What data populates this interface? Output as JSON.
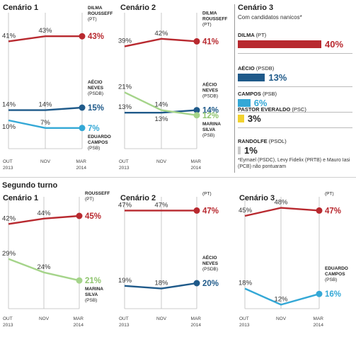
{
  "section_title": "Segundo turno",
  "chart_data": [
    {
      "type": "line",
      "title": "Cenário 1",
      "x": [
        "OUT 2013",
        "NOV",
        "MAR 2014"
      ],
      "series": [
        {
          "name": "DILMA ROUSSEFF (PT)",
          "values": [
            41,
            43,
            43
          ],
          "labels": [
            "41%",
            "43%",
            "43%"
          ],
          "color": "#b8292f"
        },
        {
          "name": "AÉCIO NEVES (PSDB)",
          "values": [
            14,
            14,
            15
          ],
          "labels": [
            "14%",
            "14%",
            "15%"
          ],
          "color": "#1f5a8a"
        },
        {
          "name": "EDUARDO CAMPOS (PSB)",
          "values": [
            10,
            7,
            7
          ],
          "labels": [
            "10%",
            "7%",
            "7%"
          ],
          "color": "#34a8d6"
        }
      ],
      "ylim": [
        0,
        50
      ]
    },
    {
      "type": "line",
      "title": "Cenário 2",
      "x": [
        "OUT 2013",
        "NOV",
        "MAR 2014"
      ],
      "series": [
        {
          "name": "DILMA ROUSSEFF (PT)",
          "values": [
            39,
            42,
            41
          ],
          "labels": [
            "39%",
            "42%",
            "41%"
          ],
          "color": "#b8292f"
        },
        {
          "name": "AÉCIO NEVES (PSDB)",
          "values": [
            13,
            13,
            14
          ],
          "labels": [
            "13%",
            "13%",
            "14%"
          ],
          "color": "#1f5a8a"
        },
        {
          "name": "MARINA SILVA (PSB)",
          "values": [
            21,
            14,
            12
          ],
          "labels": [
            "21%",
            "14%",
            "12%"
          ],
          "color": "#a5d48a"
        }
      ],
      "ylim": [
        0,
        50
      ]
    },
    {
      "type": "bar",
      "title": "Cenário 3",
      "subtitle": "Com candidatos nanicos*",
      "categories": [
        "DILMA",
        "AÉCIO",
        "CAMPOS",
        "PASTOR EVERALDO",
        "RANDOLFE"
      ],
      "parties": [
        "(PT)",
        "(PSDB)",
        "(PSB)",
        "(PSC)",
        "(PSOL)"
      ],
      "values": [
        40,
        13,
        6,
        3,
        1
      ],
      "labels": [
        "40%",
        "13%",
        "6%",
        "3%",
        "1%"
      ],
      "colors": [
        "#b8292f",
        "#1f5a8a",
        "#34a8d6",
        "#f2d22e",
        "#c9c9c9"
      ],
      "note": "*Eymael (PSDC), Levy Fidelix (PRTB) e Mauro Iasi (PCB) não pontuaram"
    },
    {
      "type": "line",
      "title": "Cenário 1",
      "x": [
        "OUT 2013",
        "NOV",
        "MAR 2014"
      ],
      "series": [
        {
          "name": "DILMA ROUSSEFF (PT)",
          "values": [
            42,
            44,
            45
          ],
          "labels": [
            "42%",
            "44%",
            "45%"
          ],
          "color": "#b8292f"
        },
        {
          "name": "MARINA SILVA (PSB)",
          "values": [
            29,
            24,
            21
          ],
          "labels": [
            "29%",
            "24%",
            "21%"
          ],
          "color": "#a5d48a"
        }
      ],
      "ylim": [
        0,
        50
      ]
    },
    {
      "type": "line",
      "title": "Cenário 2",
      "x": [
        "OUT 2013",
        "NOV",
        "MAR 2014"
      ],
      "series": [
        {
          "name": "DILMA ROUSSEFF (PT)",
          "values": [
            47,
            47,
            47
          ],
          "labels": [
            "47%",
            "47%",
            "47%"
          ],
          "color": "#b8292f"
        },
        {
          "name": "AÉCIO NEVES (PSDB)",
          "values": [
            19,
            18,
            20
          ],
          "labels": [
            "19%",
            "18%",
            "20%"
          ],
          "color": "#1f5a8a"
        }
      ],
      "ylim": [
        0,
        50
      ]
    },
    {
      "type": "line",
      "title": "Cenário 3",
      "x": [
        "OUT 2013",
        "NOV",
        "MAR 2014"
      ],
      "series": [
        {
          "name": "DILMA ROUSSEFF (PT)",
          "values": [
            45,
            48,
            47
          ],
          "labels": [
            "45%",
            "48%",
            "47%"
          ],
          "color": "#b8292f"
        },
        {
          "name": "EDUARDO CAMPOS (PSB)",
          "values": [
            18,
            12,
            16
          ],
          "labels": [
            "18%",
            "12%",
            "16%"
          ],
          "color": "#34a8d6"
        }
      ],
      "ylim": [
        0,
        50
      ]
    }
  ]
}
